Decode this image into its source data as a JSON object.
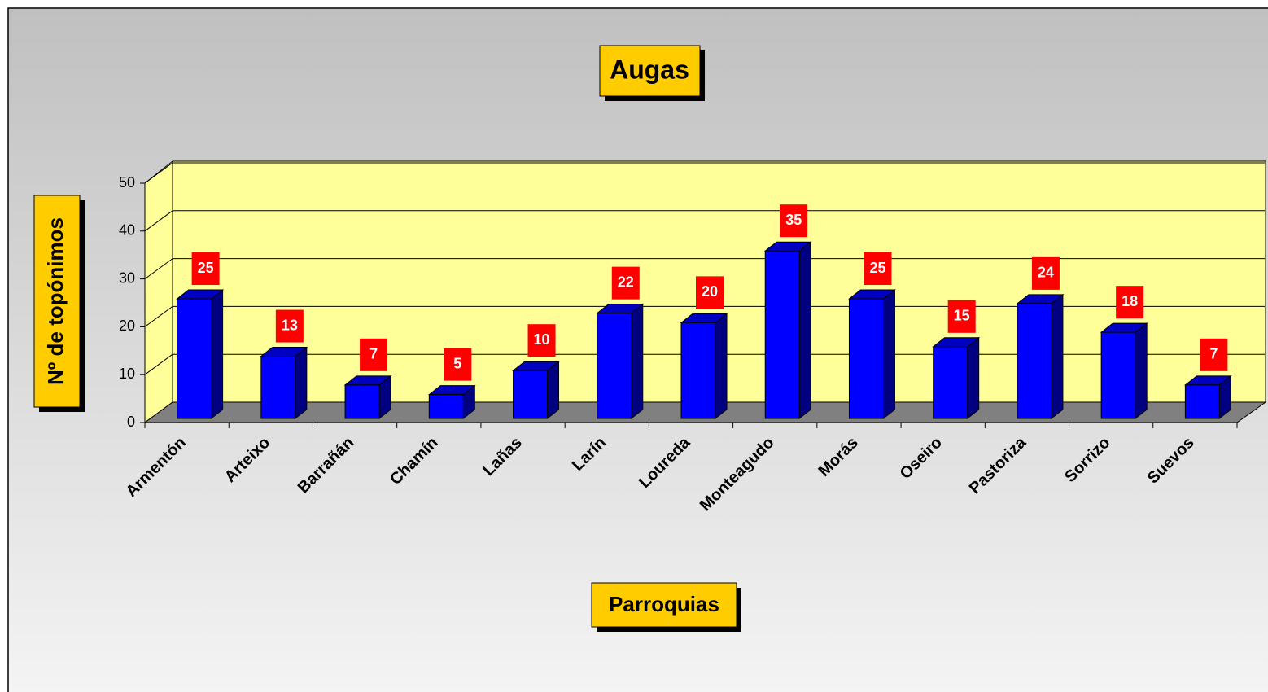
{
  "chart_data": {
    "type": "bar",
    "title": "Augas",
    "x_label": "Parroquias",
    "y_label": "Nº de topónimos",
    "categories": [
      "Armentón",
      "Arteixo",
      "Barrañán",
      "Chamín",
      "Lañas",
      "Larín",
      "Loureda",
      "Monteagudo",
      "Morás",
      "Oseiro",
      "Pastoriza",
      "Sorrizo",
      "Suevos"
    ],
    "values": [
      25,
      13,
      7,
      5,
      10,
      22,
      20,
      35,
      25,
      15,
      24,
      18,
      7
    ],
    "color": "#0000ff",
    "label_color": "#ff0000",
    "ylim": [
      0,
      50
    ],
    "yticks": [
      0,
      10,
      20,
      30,
      40,
      50
    ],
    "grid": true
  }
}
